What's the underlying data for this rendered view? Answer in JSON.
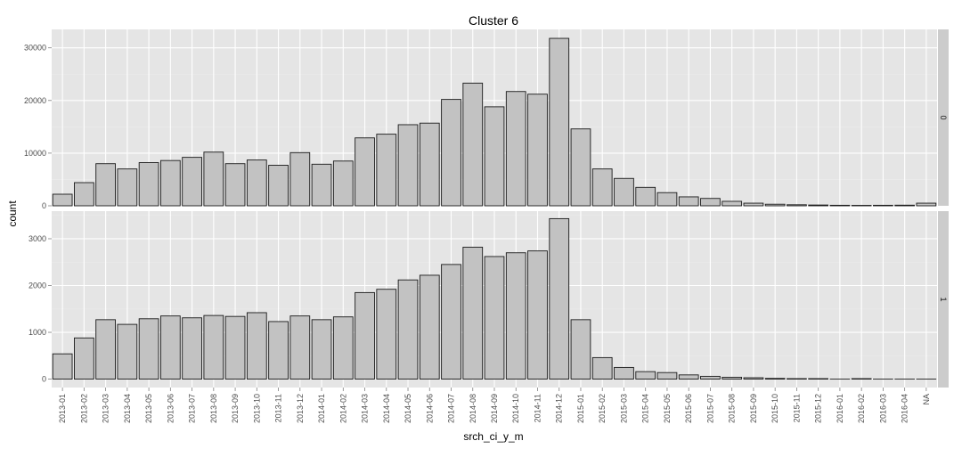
{
  "chart_data": {
    "type": "bar",
    "title": "Cluster  6",
    "xlabel": "srch_ci_y_m",
    "ylabel": "count",
    "grid": true,
    "legend": "none",
    "colors": {
      "panel_bg": "#e5e5e5",
      "grid_major": "#ffffff",
      "grid_minor": "#ececec",
      "bar_fill": "#c2c2c2",
      "bar_stroke": "#1a1a1a",
      "strip_bg": "#cccccc",
      "tick_text": "#4d4d4d"
    },
    "categories": [
      "2013-01",
      "2013-02",
      "2013-03",
      "2013-04",
      "2013-05",
      "2013-06",
      "2013-07",
      "2013-08",
      "2013-09",
      "2013-10",
      "2013-11",
      "2013-12",
      "2014-01",
      "2014-02",
      "2014-03",
      "2014-04",
      "2014-05",
      "2014-06",
      "2014-07",
      "2014-08",
      "2014-09",
      "2014-10",
      "2014-11",
      "2014-12",
      "2015-01",
      "2015-02",
      "2015-03",
      "2015-04",
      "2015-05",
      "2015-06",
      "2015-07",
      "2015-08",
      "2015-09",
      "2015-10",
      "2015-11",
      "2015-12",
      "2016-01",
      "2016-02",
      "2016-03",
      "2016-04",
      "NA"
    ],
    "facets": [
      {
        "strip_label": "0",
        "ylim": [
          0,
          33500
        ],
        "yticks": [
          0,
          10000,
          20000,
          30000
        ],
        "values": [
          2200,
          4400,
          8000,
          7000,
          8200,
          8600,
          9200,
          10200,
          8000,
          8700,
          7700,
          10100,
          7900,
          8500,
          12900,
          13600,
          15400,
          15700,
          20200,
          23300,
          18800,
          21700,
          21200,
          31800,
          14600,
          7000,
          5200,
          3500,
          2500,
          1700,
          1400,
          850,
          500,
          300,
          200,
          150,
          100,
          80,
          100,
          120,
          500
        ]
      },
      {
        "strip_label": "1",
        "ylim": [
          -180,
          3590
        ],
        "yticks": [
          0,
          1000,
          2000,
          3000
        ],
        "values": [
          540,
          880,
          1270,
          1170,
          1290,
          1350,
          1310,
          1360,
          1340,
          1420,
          1230,
          1350,
          1270,
          1330,
          1850,
          1920,
          2120,
          2220,
          2450,
          2820,
          2620,
          2700,
          2740,
          3430,
          1270,
          460,
          250,
          160,
          140,
          90,
          60,
          40,
          30,
          15,
          10,
          10,
          0,
          10,
          0,
          0,
          0
        ]
      }
    ]
  }
}
